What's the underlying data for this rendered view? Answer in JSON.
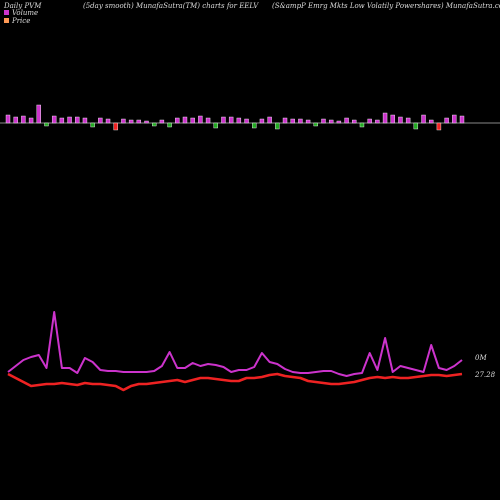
{
  "chart_data": [
    {
      "type": "bar",
      "title": "Daily PVM",
      "subtitle": "(5day smooth) MunafaSutra(TM) charts for EELV",
      "annotation": "(S&ampP Emrg Mkts Low Volatily Powershares) MunafaSutra.com",
      "values": [
        8,
        6,
        7,
        5,
        18,
        -3,
        7,
        5,
        6,
        6,
        5,
        -4,
        5,
        4,
        -7,
        4,
        3,
        3,
        2,
        -3,
        3,
        -4,
        5,
        6,
        5,
        7,
        5,
        -5,
        6,
        6,
        5,
        4,
        -5,
        4,
        6,
        -6,
        5,
        4,
        4,
        3,
        -3,
        4,
        3,
        2,
        5,
        3,
        -4,
        4,
        3,
        10,
        8,
        6,
        5,
        -6,
        8,
        3,
        -7,
        5,
        8,
        7
      ],
      "colors": [
        "#cc33cc",
        "#cc33cc",
        "#cc33cc",
        "#cc33cc",
        "#cc33cc",
        "#22aa22",
        "#cc33cc",
        "#cc33cc",
        "#cc33cc",
        "#cc33cc",
        "#cc33cc",
        "#22aa22",
        "#cc33cc",
        "#cc33cc",
        "#ee2222",
        "#cc33cc",
        "#cc33cc",
        "#cc33cc",
        "#cc33cc",
        "#22aa22",
        "#cc33cc",
        "#22aa22",
        "#cc33cc",
        "#cc33cc",
        "#cc33cc",
        "#cc33cc",
        "#cc33cc",
        "#22aa22",
        "#cc33cc",
        "#cc33cc",
        "#cc33cc",
        "#cc33cc",
        "#22aa22",
        "#cc33cc",
        "#cc33cc",
        "#22aa22",
        "#cc33cc",
        "#cc33cc",
        "#cc33cc",
        "#cc33cc",
        "#22aa22",
        "#cc33cc",
        "#cc33cc",
        "#cc33cc",
        "#cc33cc",
        "#cc33cc",
        "#22aa22",
        "#cc33cc",
        "#cc33cc",
        "#cc33cc",
        "#cc33cc",
        "#cc33cc",
        "#cc33cc",
        "#22aa22",
        "#cc33cc",
        "#cc33cc",
        "#ee2222",
        "#cc33cc",
        "#cc33cc",
        "#cc33cc"
      ],
      "ylim": [
        -123,
        123
      ]
    },
    {
      "type": "line",
      "series": [
        {
          "name": "Volume",
          "color": "#cc33cc",
          "legend_color": "#cc33cc",
          "label": "0M",
          "values": [
            28,
            34,
            40,
            43,
            45,
            32,
            88,
            32,
            32,
            27,
            42,
            38,
            30,
            29,
            29,
            28,
            28,
            28,
            28,
            29,
            34,
            48,
            32,
            32,
            37,
            34,
            36,
            35,
            33,
            28,
            30,
            30,
            33,
            47,
            38,
            36,
            31,
            28,
            27,
            27,
            28,
            29,
            29,
            26,
            24,
            26,
            27,
            47,
            30,
            62,
            28,
            34,
            32,
            30,
            28,
            55,
            32,
            30,
            34,
            40
          ]
        },
        {
          "name": "Price",
          "color": "#ee2222",
          "legend_color": "#ff9955",
          "label": "27.28",
          "values": [
            26,
            22,
            18,
            14,
            15,
            16,
            16,
            17,
            16,
            15,
            17,
            16,
            16,
            15,
            14,
            10,
            14,
            16,
            16,
            17,
            18,
            19,
            20,
            18,
            20,
            22,
            22,
            21,
            20,
            19,
            19,
            22,
            22,
            23,
            25,
            26,
            24,
            23,
            22,
            19,
            18,
            17,
            16,
            16,
            17,
            18,
            20,
            22,
            23,
            22,
            23,
            22,
            22,
            23,
            24,
            25,
            25,
            24,
            25,
            26
          ]
        }
      ],
      "ylim": [
        0,
        400
      ]
    }
  ]
}
